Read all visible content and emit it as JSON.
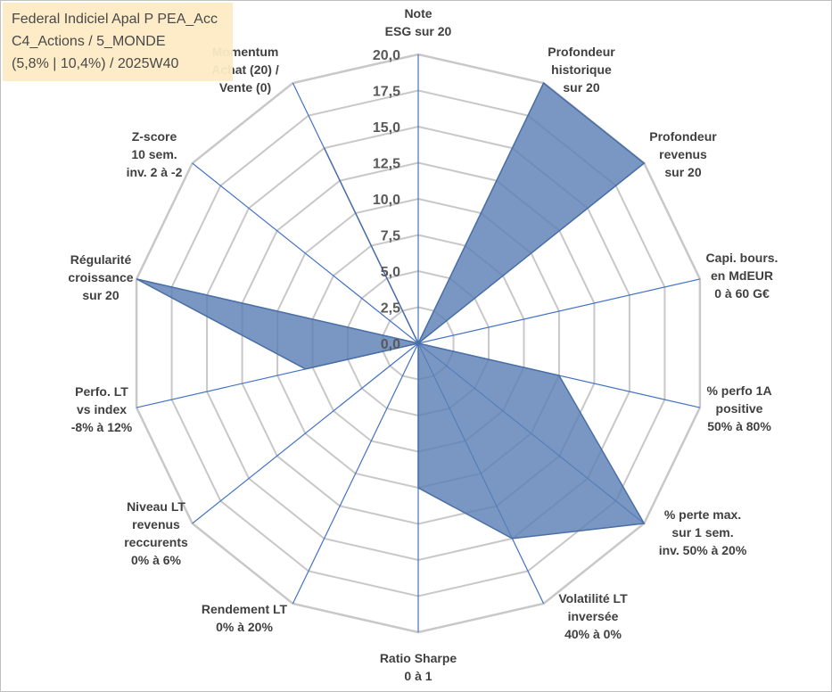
{
  "title": {
    "line1": "Federal Indiciel Apal P PEA_Acc",
    "line2": "C4_Actions / 5_MONDE",
    "line3": "(5,8% | 10,4%) / 2025W40"
  },
  "colors": {
    "fill": "#5b80b4",
    "stroke": "#4a6fa5",
    "grid": "#c8c8c8",
    "spoke": "#4472c4"
  },
  "chart_data": {
    "type": "radar",
    "r_range": [
      0,
      20
    ],
    "tick_values": [
      0,
      2.5,
      5,
      7.5,
      10,
      12.5,
      15,
      17.5,
      20
    ],
    "tick_labels": [
      "0,0",
      "2,5",
      "5,0",
      "7,5",
      "10,0",
      "12,5",
      "15,0",
      "17,5",
      "20,0"
    ],
    "categories": [
      [
        "Note",
        "ESG sur 20"
      ],
      [
        "Profondeur",
        "historique",
        "sur 20"
      ],
      [
        "Profondeur",
        "revenus",
        "sur 20"
      ],
      [
        "Capi. bours.",
        "en MdEUR",
        "0 à 60 G€"
      ],
      [
        "% perfo 1A",
        "positive",
        "50% à 80%"
      ],
      [
        "% perte max.",
        "sur 1 sem.",
        "inv. 50% à 20%"
      ],
      [
        "Volatilité LT",
        "inversée",
        "40% à 0%"
      ],
      [
        "Ratio Sharpe",
        "0 à 1"
      ],
      [
        "Rendement LT",
        "0% à 20%"
      ],
      [
        "Niveau LT",
        "revenus",
        "reccurents",
        "0% à 6%"
      ],
      [
        "Perfo. LT",
        "vs index",
        "-8% à 12%"
      ],
      [
        "Régularité",
        "croissance",
        "sur 20"
      ],
      [
        "Z-score",
        "10 sem.",
        "inv. 2 à -2"
      ],
      [
        "Momentum",
        "Achat (20) /",
        "Vente (0)"
      ]
    ],
    "values": [
      0,
      20,
      20,
      0,
      10,
      20,
      15,
      10,
      0,
      0,
      8,
      20,
      0,
      15
    ],
    "grid": true,
    "legend": "none"
  }
}
